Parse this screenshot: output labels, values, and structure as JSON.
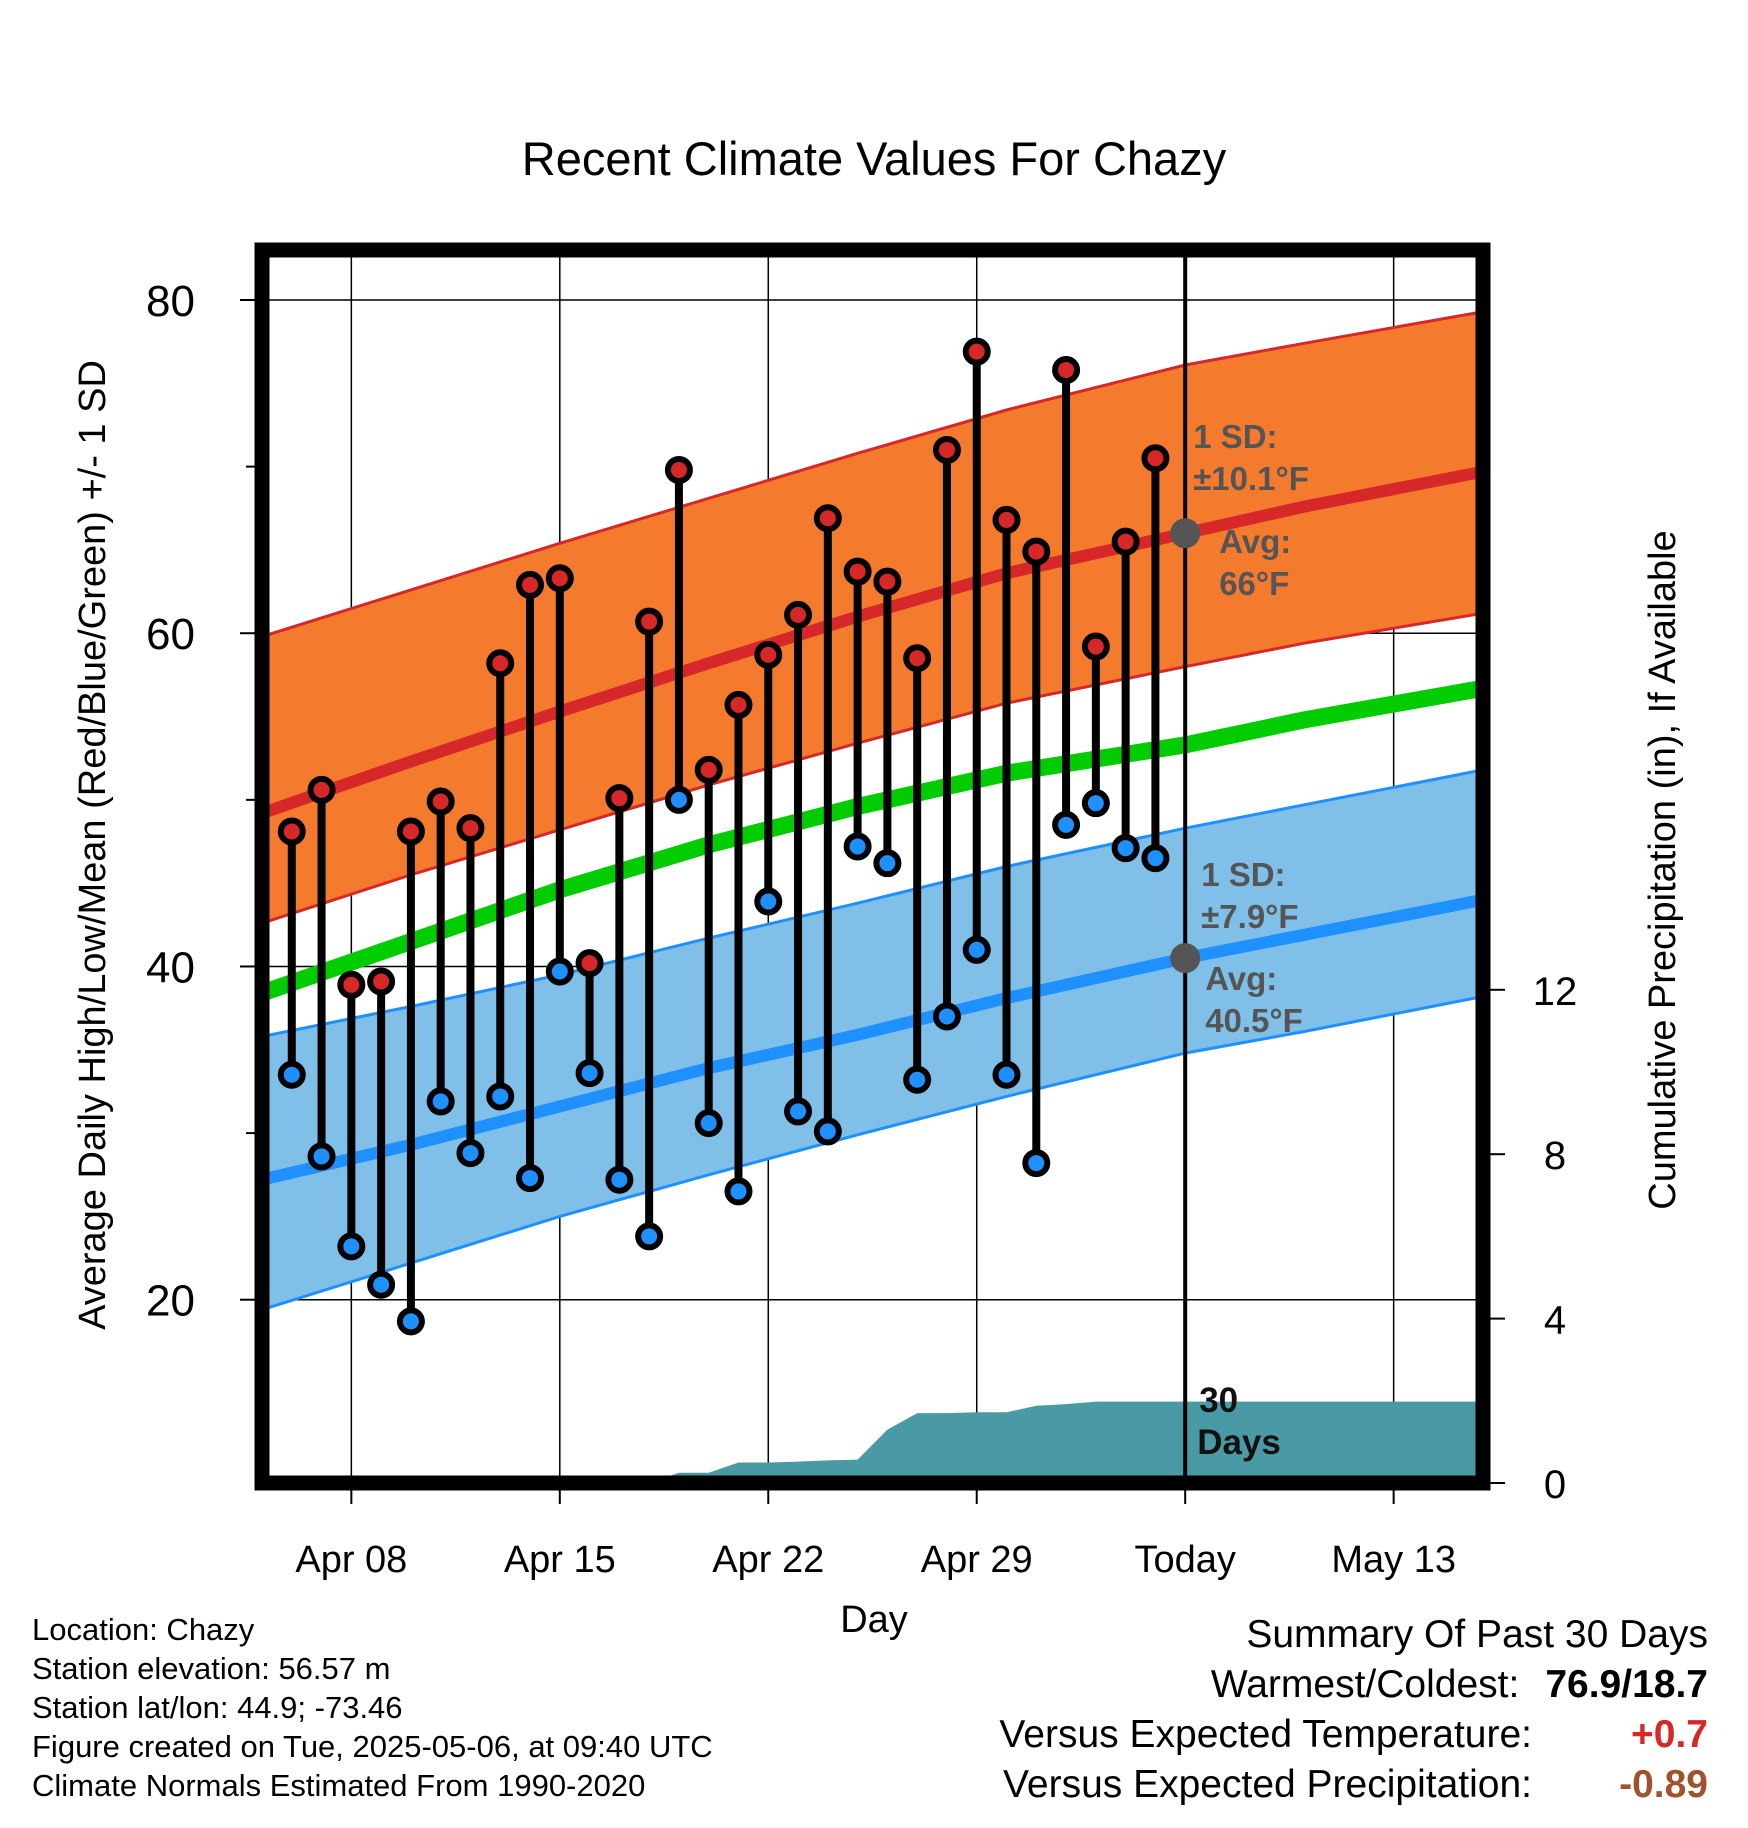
{
  "chart_data": {
    "type": "line",
    "title": "Recent Climate Values For Chazy",
    "xlabel": "Day",
    "ylabel": "Average Daily High/Low/Mean (Red/Blue/Green) +/- 1 SD",
    "y2label": "Cumulative Precipitation (in), If Available",
    "x_ticks": [
      "Apr 08",
      "Apr 15",
      "Apr 22",
      "Apr 29",
      "Today",
      "May 13"
    ],
    "x_tick_dates": [
      "2025-04-08",
      "2025-04-15",
      "2025-04-22",
      "2025-04-29",
      "2025-05-06",
      "2025-05-13"
    ],
    "x_range": [
      "2025-04-05",
      "2025-05-16"
    ],
    "ylim": [
      9,
      83
    ],
    "yticks": [
      20,
      40,
      60,
      80
    ],
    "y2lim": [
      0,
      30
    ],
    "y2ticks": [
      0,
      4,
      8,
      12
    ],
    "grid": true,
    "today": "2025-05-06",
    "colors": {
      "high_band": "#f47b2e",
      "high_band_edge": "#d62828",
      "high_mean": "#d62828",
      "low_band": "#7fbfe8",
      "low_band_edge": "#1e90ff",
      "low_mean": "#1e90ff",
      "mean": "#00cc00",
      "precip": "#4a9aa5",
      "high_dot": "#d62828",
      "low_dot": "#1e90ff",
      "avg_marker": "#555555"
    },
    "normals": {
      "dates": [
        "2025-04-05",
        "2025-04-10",
        "2025-04-15",
        "2025-04-20",
        "2025-04-25",
        "2025-04-30",
        "2025-05-06",
        "2025-05-10",
        "2025-05-16"
      ],
      "high_mean": [
        49.2,
        52.3,
        55.3,
        58.2,
        61.0,
        63.6,
        66.0,
        67.6,
        69.7
      ],
      "high_upper": [
        59.8,
        62.6,
        65.4,
        68.1,
        70.8,
        73.4,
        76.1,
        77.4,
        79.3
      ],
      "high_lower": [
        42.6,
        45.5,
        48.2,
        50.9,
        53.4,
        55.8,
        58.0,
        59.4,
        61.2
      ],
      "mean": [
        38.4,
        41.5,
        44.6,
        47.3,
        49.6,
        51.6,
        53.3,
        54.8,
        56.7
      ],
      "low_mean": [
        27.2,
        29.3,
        31.6,
        33.9,
        35.9,
        38.1,
        40.5,
        41.9,
        44.0
      ],
      "low_upper": [
        35.8,
        37.6,
        39.5,
        41.7,
        43.8,
        46.0,
        48.3,
        49.7,
        51.8
      ],
      "low_lower": [
        19.4,
        22.2,
        25.0,
        27.5,
        29.9,
        32.2,
        34.8,
        36.1,
        38.2
      ]
    },
    "series": [
      {
        "name": "High",
        "dates": [
          "2025-04-06",
          "2025-04-07",
          "2025-04-08",
          "2025-04-09",
          "2025-04-10",
          "2025-04-11",
          "2025-04-12",
          "2025-04-13",
          "2025-04-14",
          "2025-04-15",
          "2025-04-16",
          "2025-04-17",
          "2025-04-18",
          "2025-04-19",
          "2025-04-20",
          "2025-04-21",
          "2025-04-22",
          "2025-04-23",
          "2025-04-24",
          "2025-04-25",
          "2025-04-26",
          "2025-04-27",
          "2025-04-28",
          "2025-04-29",
          "2025-04-30",
          "2025-05-01",
          "2025-05-02",
          "2025-05-03",
          "2025-05-04",
          "2025-05-05"
        ],
        "values": [
          48.1,
          50.6,
          38.9,
          39.1,
          48.1,
          49.9,
          48.3,
          58.2,
          62.9,
          63.3,
          40.2,
          50.1,
          60.7,
          69.8,
          51.8,
          55.7,
          58.7,
          61.1,
          66.9,
          63.7,
          63.1,
          58.5,
          71.0,
          76.9,
          66.8,
          64.9,
          75.8,
          59.2,
          65.5,
          70.5
        ]
      },
      {
        "name": "Low",
        "dates": [
          "2025-04-06",
          "2025-04-07",
          "2025-04-08",
          "2025-04-09",
          "2025-04-10",
          "2025-04-11",
          "2025-04-12",
          "2025-04-13",
          "2025-04-14",
          "2025-04-15",
          "2025-04-16",
          "2025-04-17",
          "2025-04-18",
          "2025-04-19",
          "2025-04-20",
          "2025-04-21",
          "2025-04-22",
          "2025-04-23",
          "2025-04-24",
          "2025-04-25",
          "2025-04-26",
          "2025-04-27",
          "2025-04-28",
          "2025-04-29",
          "2025-04-30",
          "2025-05-01",
          "2025-05-02",
          "2025-05-03",
          "2025-05-04",
          "2025-05-05"
        ],
        "values": [
          33.5,
          28.6,
          23.2,
          20.9,
          18.7,
          31.9,
          28.8,
          32.2,
          27.3,
          39.7,
          33.6,
          27.2,
          23.8,
          50.0,
          30.6,
          26.5,
          43.9,
          31.3,
          30.1,
          47.2,
          46.2,
          33.2,
          37.0,
          41.0,
          33.5,
          28.2,
          48.5,
          49.8,
          47.1,
          46.5
        ]
      },
      {
        "name": "Cumulative Precipitation",
        "dates": [
          "2025-04-05",
          "2025-04-17",
          "2025-04-18",
          "2025-04-19",
          "2025-04-20",
          "2025-04-21",
          "2025-04-22",
          "2025-04-23",
          "2025-04-24",
          "2025-04-25",
          "2025-04-26",
          "2025-04-27",
          "2025-04-28",
          "2025-04-29",
          "2025-04-30",
          "2025-05-01",
          "2025-05-02",
          "2025-05-03",
          "2025-05-06",
          "2025-05-16"
        ],
        "values": [
          0,
          0,
          0,
          0.25,
          0.25,
          0.5,
          0.5,
          0.52,
          0.55,
          0.57,
          1.3,
          1.7,
          1.7,
          1.72,
          1.72,
          1.88,
          1.92,
          1.98,
          1.98,
          1.98
        ]
      }
    ],
    "annotations": {
      "high_sd_label": "1 SD:",
      "high_sd_value": "±10.1°F",
      "high_avg_label": "Avg:",
      "high_avg_value": "66°F",
      "high_avg": 66,
      "low_sd_label": "1 SD:",
      "low_sd_value": "±7.9°F",
      "low_avg_label": "Avg:",
      "low_avg_value": "40.5°F",
      "low_avg": 40.5,
      "precip_label_line1": "30",
      "precip_label_line2": "Days"
    }
  },
  "footer": {
    "location": "Location: Chazy",
    "elevation": "Station elevation: 56.57 m",
    "latlon": "Station lat/lon: 44.9; -73.46",
    "created": "Figure created on Tue, 2025-05-06, at 09:40 UTC",
    "normals": "Climate Normals Estimated From 1990-2020"
  },
  "summary": {
    "title": "Summary Of Past 30 Days",
    "warm_cold_label": "Warmest/Coldest:",
    "warm_cold_value": "76.9/18.7",
    "temp_label": "Versus Expected Temperature:",
    "temp_value": "+0.7",
    "temp_color": "#d62828",
    "precip_label": "Versus Expected Precipitation:",
    "precip_value": "-0.89",
    "precip_color": "#a0522d"
  }
}
